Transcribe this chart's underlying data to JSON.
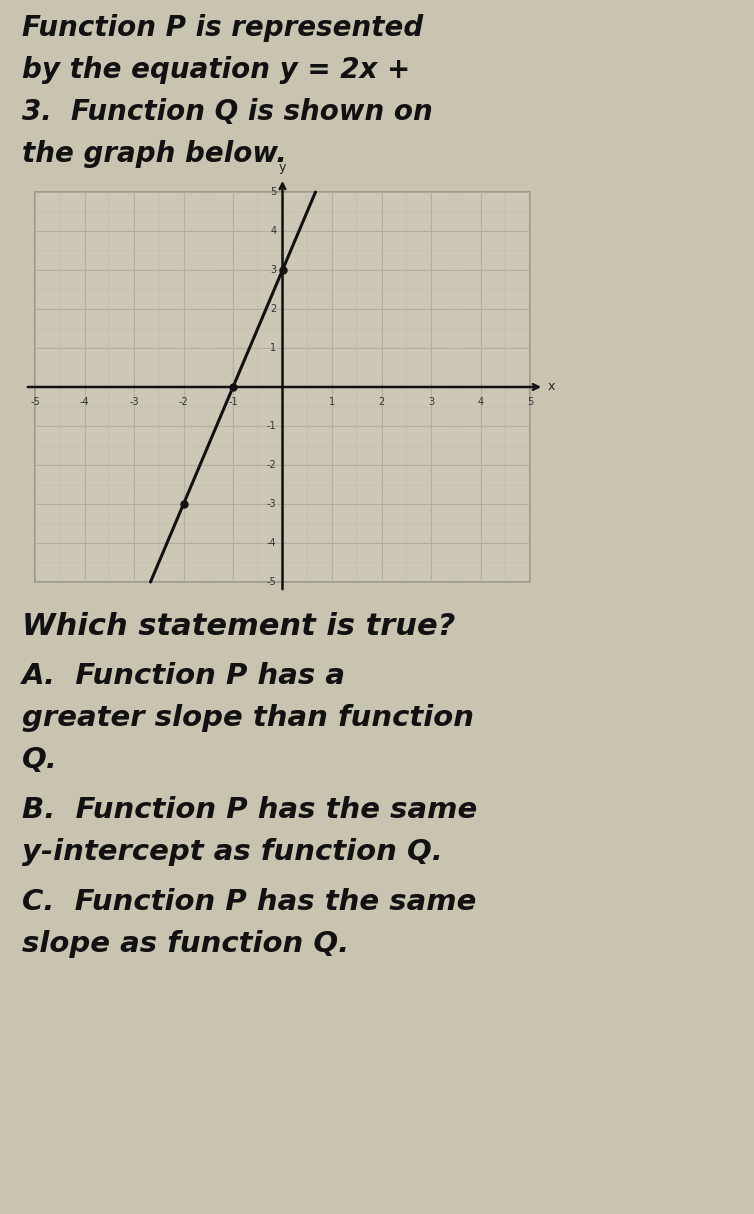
{
  "header_line1": "Function P is represented",
  "header_line2": "by the equation y = 2x +",
  "header_line3": "3.  Function Q is shown on",
  "header_line4": "the graph below.",
  "question_text": "Which statement is true?",
  "optA_line1": "A.  Function P has a",
  "optA_line2": "greater slope than function",
  "optA_line3": "Q.",
  "optB_line1": "B.  Function P has the same",
  "optB_line2": "y-intercept as function Q.",
  "optC_line1": "C.  Function P has the same",
  "optC_line2": "slope as function Q.",
  "graph": {
    "xlim": [
      -5,
      5
    ],
    "ylim": [
      -5,
      5
    ],
    "line_slope": 3,
    "line_intercept": 3,
    "bg_color": "#ccc8b8",
    "grid_color": "#999888",
    "line_color": "#111111",
    "axis_color": "#111111"
  },
  "page_bg": "#c8c4b0",
  "text_color": "#111111",
  "header_fontsize": 20,
  "question_fontsize": 22,
  "option_fontsize": 21
}
